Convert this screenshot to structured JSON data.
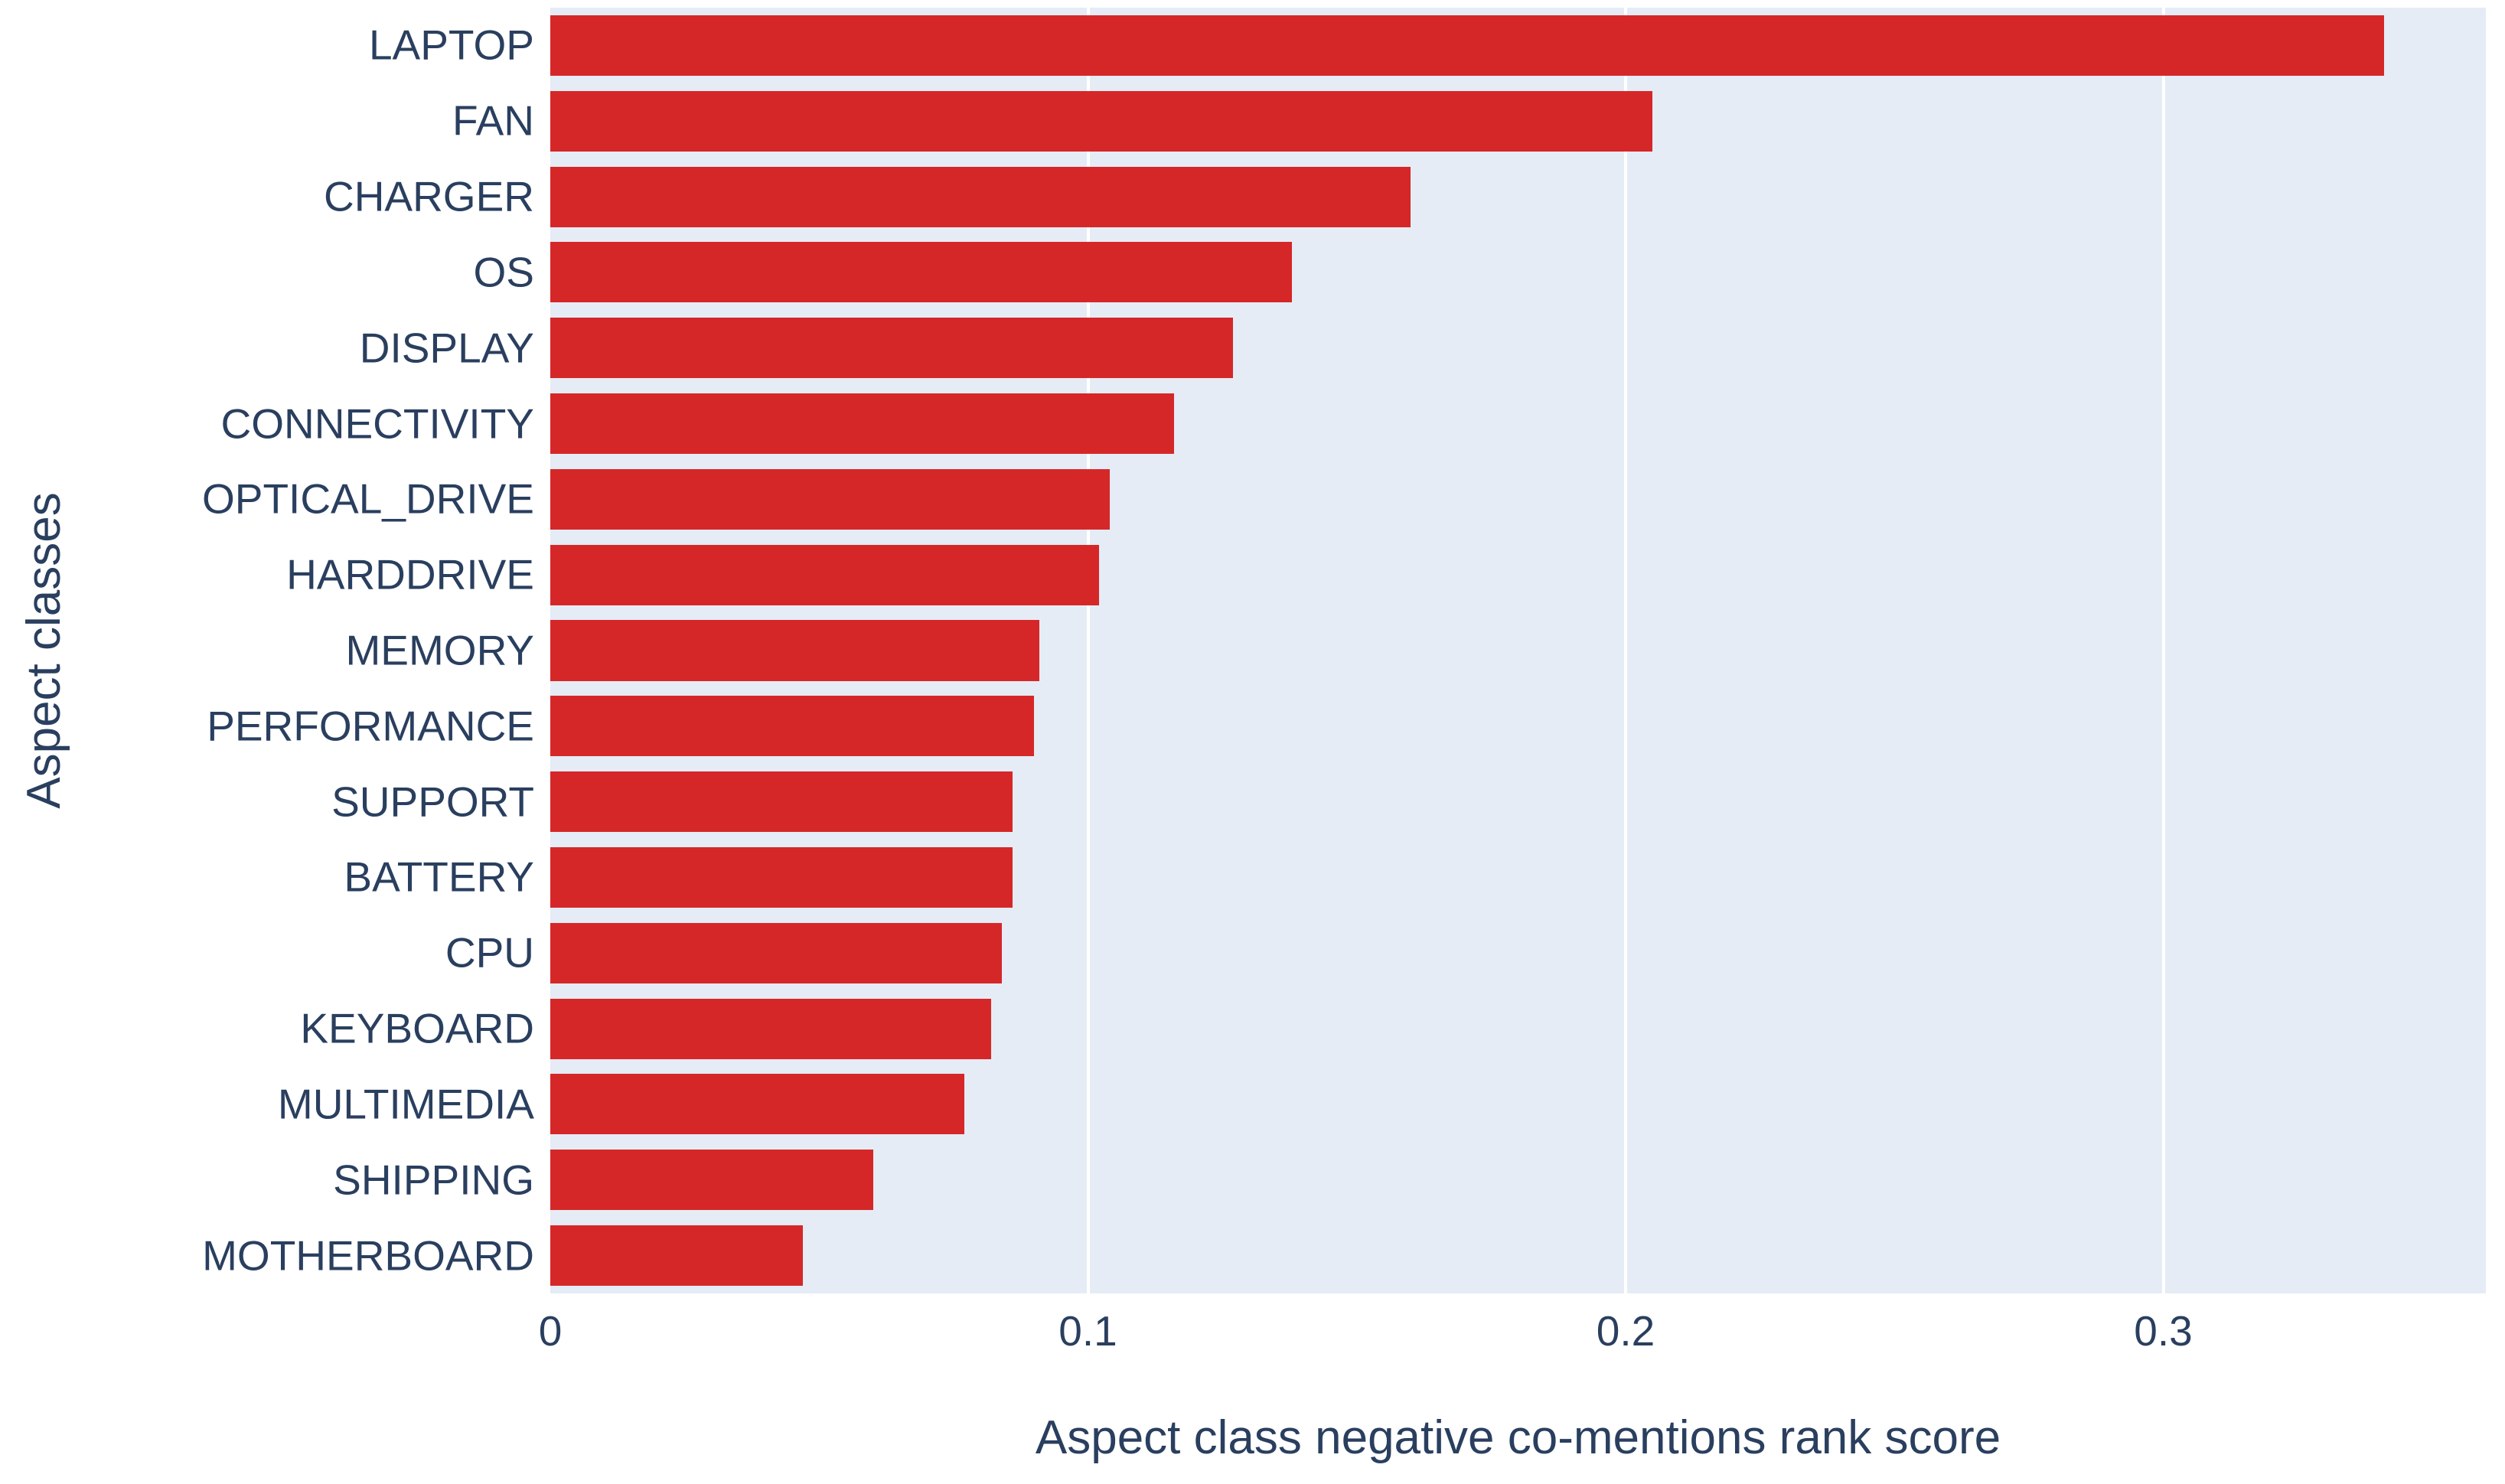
{
  "chart_data": {
    "type": "bar",
    "orientation": "horizontal",
    "xlabel": "Aspect class negative co-mentions rank score",
    "ylabel": "Aspect classes",
    "categories": [
      "LAPTOP",
      "FAN",
      "CHARGER",
      "OS",
      "DISPLAY",
      "CONNECTIVITY",
      "OPTICAL_DRIVE",
      "HARDDRIVE",
      "MEMORY",
      "PERFORMANCE",
      "SUPPORT",
      "BATTERY",
      "CPU",
      "KEYBOARD",
      "MULTIMEDIA",
      "SHIPPING",
      "MOTHERBOARD"
    ],
    "values": [
      0.341,
      0.205,
      0.16,
      0.138,
      0.127,
      0.116,
      0.104,
      0.102,
      0.091,
      0.09,
      0.086,
      0.086,
      0.084,
      0.082,
      0.077,
      0.06,
      0.047
    ],
    "xlim": [
      0,
      0.36
    ],
    "xticks": [
      0,
      0.1,
      0.2,
      0.3
    ],
    "xtick_labels": [
      "0",
      "0.1",
      "0.2",
      "0.3"
    ],
    "grid": true,
    "legend": false
  },
  "colors": {
    "bar": "#d62728",
    "plot_background": "#e5ecf6",
    "gridline": "#ffffff",
    "text": "#2a3f5f",
    "page_background": "#ffffff"
  }
}
